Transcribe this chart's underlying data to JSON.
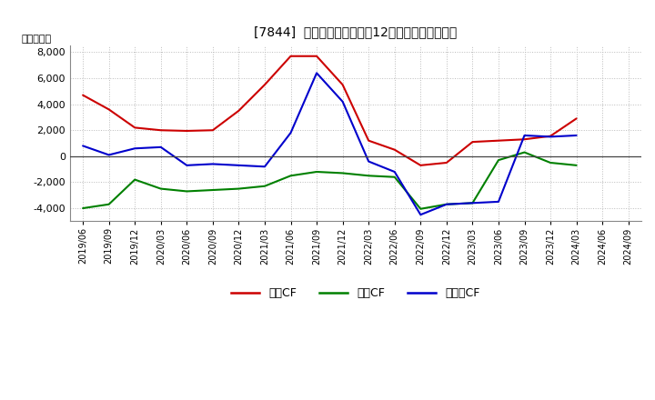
{
  "title": "[7844]  キャッシュフローの12か月移動合計の推移",
  "ylabel": "（百万円）",
  "x_labels": [
    "2019/06",
    "2019/09",
    "2019/12",
    "2020/03",
    "2020/06",
    "2020/09",
    "2020/12",
    "2021/03",
    "2021/06",
    "2021/09",
    "2021/12",
    "2022/03",
    "2022/06",
    "2022/09",
    "2022/12",
    "2023/03",
    "2023/06",
    "2023/09",
    "2023/12",
    "2024/03",
    "2024/06",
    "2024/09"
  ],
  "eigyo_cf": [
    4700,
    3600,
    2200,
    2000,
    1950,
    2000,
    3500,
    5500,
    7700,
    7700,
    5500,
    1200,
    500,
    -700,
    -500,
    1100,
    1200,
    1300,
    1550,
    2900,
    null,
    null
  ],
  "toshi_cf": [
    -4000,
    -3700,
    -1800,
    -2500,
    -2700,
    -2600,
    -2500,
    -2300,
    -1500,
    -1200,
    -1300,
    -1500,
    -1600,
    -4050,
    -3700,
    -3600,
    -300,
    300,
    -500,
    -700,
    null,
    null
  ],
  "free_cf": [
    800,
    100,
    600,
    700,
    -700,
    -600,
    -700,
    -800,
    1800,
    6400,
    4200,
    -400,
    -1200,
    -4500,
    -3700,
    -3600,
    -3500,
    1600,
    1500,
    1600,
    null,
    null
  ],
  "ylim": [
    -5000,
    8500
  ],
  "yticks": [
    -4000,
    -2000,
    0,
    2000,
    4000,
    6000,
    8000
  ],
  "colors": {
    "eigyo": "#cc0000",
    "toshi": "#008000",
    "free": "#0000cc"
  },
  "background": "#ffffff",
  "grid_color": "#999999",
  "legend_labels": [
    "営業CF",
    "投資CF",
    "フリーCF"
  ]
}
